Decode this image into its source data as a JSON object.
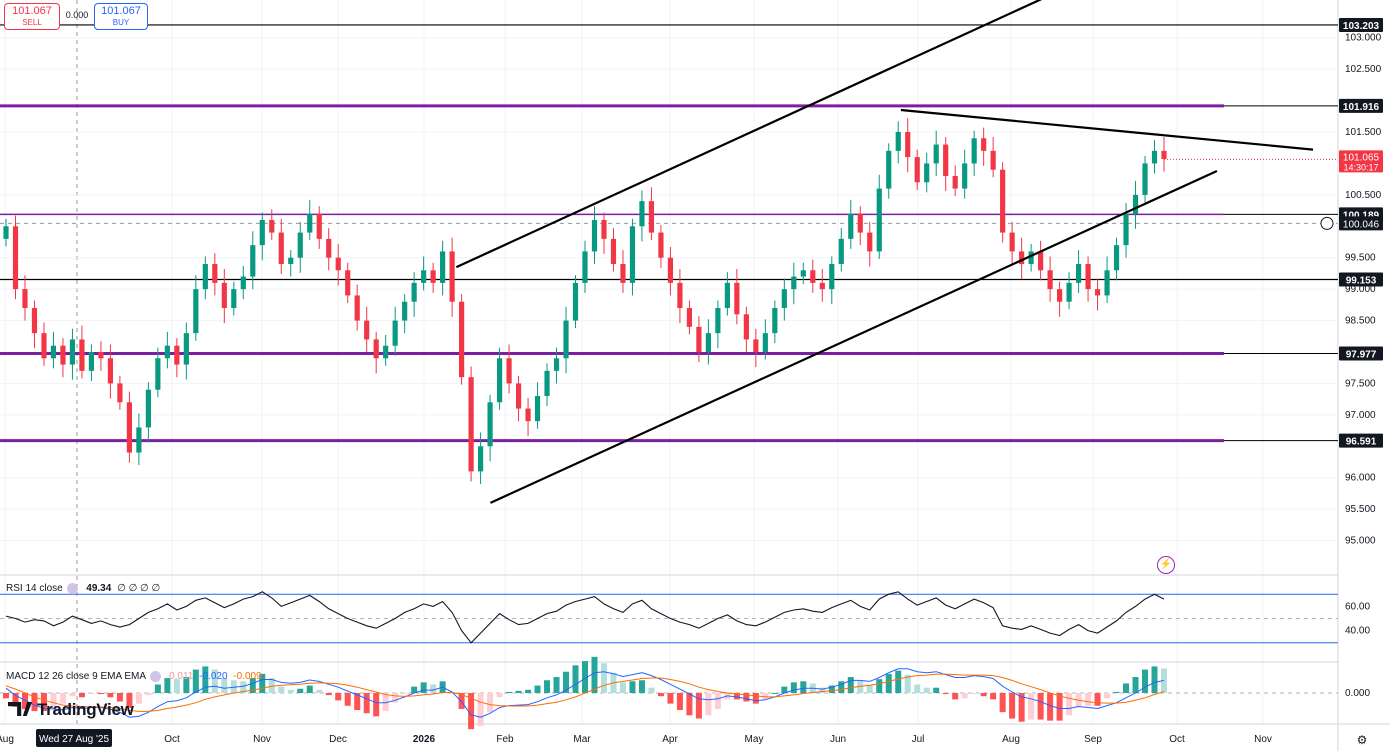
{
  "trade_panel": {
    "sell_price": "101.067",
    "sell_label": "SELL",
    "spread": "0.000",
    "buy_price": "101.067",
    "buy_label": "BUY"
  },
  "rsi_label": {
    "name": "RSI 14 close",
    "value": "49.34",
    "extra": "∅ ∅ ∅ ∅"
  },
  "macd_label": {
    "name": "MACD 12 26 close 9 EMA EMA",
    "v1": "0.011",
    "v2": "-0.020",
    "v3": "-0.009"
  },
  "brand": "TradingView",
  "colors": {
    "up": "#089981",
    "down": "#f23645",
    "purple": "#7b1fa2",
    "rsi_band": "#2962ff",
    "macd": "#2962ff",
    "signal": "#ff6d00"
  },
  "icons": {
    "logo": "tradingview-logo-icon",
    "settings": "gear-icon",
    "alert": "lightning-icon"
  },
  "chart_data": {
    "type": "candlestick",
    "price_ticks": [
      "103.000",
      "102.500",
      "101.500",
      "100.500",
      "99.500",
      "99.000",
      "98.500",
      "97.500",
      "97.000",
      "96.000",
      "95.500",
      "95.000"
    ],
    "price_range": [
      94.5,
      103.6
    ],
    "x_labels": [
      "Aug",
      "Oct",
      "Nov",
      "Dec",
      "2026",
      "Feb",
      "Mar",
      "Apr",
      "May",
      "Jun",
      "Jul",
      "Aug",
      "Sep",
      "Oct",
      "Nov"
    ],
    "crosshair_date": "Wed 27 Aug '25",
    "current_price": {
      "value": "101.065",
      "countdown": "14:30:17"
    },
    "crosshair_price": "100.046",
    "level_labels": [
      {
        "value": "103.203",
        "price": 103.203,
        "line": "black"
      },
      {
        "value": "101.916",
        "price": 101.916,
        "line": "purple"
      },
      {
        "value": "100.189",
        "price": 100.189,
        "line": "purple"
      },
      {
        "value": "99.153",
        "price": 99.153,
        "line": "black"
      },
      {
        "value": "97.977",
        "price": 97.977,
        "line": "purple"
      },
      {
        "value": "96.591",
        "price": 96.591,
        "line": "purple"
      }
    ],
    "trendlines": [
      {
        "name": "channel-upper",
        "from": [
          0.3283,
          99.35
        ],
        "to": [
          0.7577,
          103.7
        ]
      },
      {
        "name": "channel-lower",
        "from": [
          0.3528,
          95.6
        ],
        "to": [
          0.8755,
          100.88
        ]
      },
      {
        "name": "resistance-falling",
        "from": [
          0.6481,
          101.85
        ],
        "to": [
          0.9446,
          101.22
        ]
      }
    ],
    "closes": [
      100.0,
      99.0,
      98.7,
      98.3,
      97.9,
      98.1,
      97.8,
      98.2,
      97.7,
      98.0,
      97.9,
      97.5,
      97.2,
      96.4,
      96.8,
      97.4,
      97.9,
      98.1,
      97.8,
      98.3,
      99.0,
      99.4,
      99.1,
      98.7,
      99.0,
      99.2,
      99.7,
      100.1,
      99.9,
      99.4,
      99.5,
      99.9,
      100.2,
      99.8,
      99.5,
      99.3,
      98.9,
      98.5,
      98.2,
      97.9,
      98.1,
      98.5,
      98.8,
      99.1,
      99.3,
      99.1,
      99.6,
      98.8,
      97.6,
      96.1,
      96.5,
      97.2,
      97.9,
      97.5,
      97.1,
      96.9,
      97.3,
      97.7,
      97.9,
      98.5,
      99.1,
      99.6,
      100.1,
      99.8,
      99.4,
      99.1,
      100.0,
      100.4,
      99.9,
      99.5,
      99.1,
      98.7,
      98.4,
      98.0,
      98.3,
      98.7,
      99.1,
      98.6,
      98.2,
      98.0,
      98.3,
      98.7,
      99.0,
      99.2,
      99.3,
      99.1,
      99.0,
      99.4,
      99.8,
      100.2,
      99.9,
      99.6,
      100.6,
      101.2,
      101.5,
      101.1,
      100.7,
      101.0,
      101.3,
      100.8,
      100.6,
      101.0,
      101.4,
      101.2,
      100.9,
      99.9,
      99.6,
      99.4,
      99.6,
      99.3,
      99.0,
      98.8,
      99.1,
      99.4,
      99.0,
      98.9,
      99.3,
      99.7,
      100.2,
      100.5,
      101.0,
      101.2,
      101.07
    ],
    "rsi": {
      "range": [
        0,
        100
      ],
      "levels": [
        70,
        50,
        30
      ],
      "ticks": [
        "60.00",
        "40.00"
      ],
      "values": [
        52,
        50,
        47,
        49,
        48,
        44,
        47,
        52,
        49,
        46,
        48,
        45,
        43,
        45,
        50,
        55,
        58,
        62,
        57,
        60,
        65,
        67,
        63,
        59,
        62,
        66,
        68,
        72,
        67,
        60,
        63,
        66,
        69,
        64,
        58,
        54,
        50,
        47,
        44,
        42,
        46,
        50,
        55,
        58,
        62,
        60,
        64,
        55,
        40,
        30,
        38,
        46,
        54,
        49,
        45,
        46,
        50,
        54,
        56,
        61,
        64,
        66,
        68,
        62,
        58,
        55,
        62,
        65,
        58,
        54,
        50,
        47,
        45,
        42,
        46,
        50,
        53,
        48,
        45,
        44,
        47,
        51,
        55,
        57,
        58,
        56,
        55,
        59,
        62,
        65,
        60,
        57,
        66,
        70,
        72,
        66,
        61,
        64,
        67,
        61,
        58,
        62,
        66,
        63,
        59,
        44,
        42,
        41,
        44,
        41,
        38,
        36,
        41,
        45,
        40,
        38,
        43,
        48,
        55,
        60,
        66,
        70,
        66
      ]
    },
    "macd": {
      "ticks": [
        "0.000"
      ],
      "macd": [
        0.1,
        -0.05,
        -0.15,
        -0.25,
        -0.32,
        -0.33,
        -0.35,
        -0.3,
        -0.32,
        -0.3,
        -0.3,
        -0.34,
        -0.4,
        -0.5,
        -0.48,
        -0.4,
        -0.28,
        -0.18,
        -0.16,
        -0.1,
        0.02,
        0.12,
        0.14,
        0.1,
        0.12,
        0.14,
        0.2,
        0.28,
        0.28,
        0.22,
        0.2,
        0.22,
        0.27,
        0.24,
        0.18,
        0.12,
        0.04,
        -0.04,
        -0.12,
        -0.2,
        -0.2,
        -0.15,
        -0.08,
        0.0,
        0.06,
        0.06,
        0.12,
        0.02,
        -0.18,
        -0.45,
        -0.5,
        -0.42,
        -0.3,
        -0.26,
        -0.25,
        -0.24,
        -0.18,
        -0.1,
        -0.04,
        0.06,
        0.18,
        0.3,
        0.42,
        0.44,
        0.4,
        0.34,
        0.38,
        0.42,
        0.36,
        0.28,
        0.18,
        0.08,
        -0.02,
        -0.12,
        -0.14,
        -0.12,
        -0.06,
        -0.08,
        -0.12,
        -0.16,
        -0.14,
        -0.08,
        0.0,
        0.06,
        0.1,
        0.1,
        0.08,
        0.12,
        0.18,
        0.26,
        0.26,
        0.24,
        0.32,
        0.42,
        0.5,
        0.5,
        0.44,
        0.42,
        0.44,
        0.38,
        0.32,
        0.32,
        0.36,
        0.34,
        0.3,
        0.14,
        0.02,
        -0.08,
        -0.12,
        -0.18,
        -0.26,
        -0.32,
        -0.32,
        -0.28,
        -0.3,
        -0.32,
        -0.26,
        -0.2,
        -0.1,
        0.0,
        0.12,
        0.22,
        0.26
      ],
      "signal": [
        0.15,
        0.08,
        0.0,
        -0.08,
        -0.15,
        -0.2,
        -0.25,
        -0.27,
        -0.28,
        -0.29,
        -0.29,
        -0.3,
        -0.32,
        -0.36,
        -0.38,
        -0.38,
        -0.36,
        -0.32,
        -0.29,
        -0.25,
        -0.2,
        -0.13,
        -0.08,
        -0.04,
        0.0,
        0.03,
        0.06,
        0.1,
        0.14,
        0.16,
        0.17,
        0.18,
        0.2,
        0.21,
        0.2,
        0.19,
        0.16,
        0.12,
        0.07,
        0.02,
        -0.03,
        -0.06,
        -0.07,
        -0.06,
        -0.04,
        -0.02,
        0.01,
        0.01,
        -0.03,
        -0.11,
        -0.19,
        -0.24,
        -0.26,
        -0.27,
        -0.27,
        -0.27,
        -0.25,
        -0.22,
        -0.19,
        -0.14,
        -0.08,
        0.0,
        0.08,
        0.16,
        0.21,
        0.24,
        0.27,
        0.3,
        0.31,
        0.31,
        0.28,
        0.24,
        0.19,
        0.12,
        0.07,
        0.03,
        0.0,
        -0.02,
        -0.04,
        -0.06,
        -0.08,
        -0.08,
        -0.06,
        -0.04,
        -0.01,
        0.01,
        0.03,
        0.05,
        0.07,
        0.11,
        0.14,
        0.16,
        0.19,
        0.24,
        0.29,
        0.33,
        0.36,
        0.37,
        0.39,
        0.39,
        0.38,
        0.37,
        0.37,
        0.37,
        0.36,
        0.32,
        0.26,
        0.19,
        0.13,
        0.07,
        0.0,
        -0.06,
        -0.11,
        -0.15,
        -0.18,
        -0.2,
        -0.21,
        -0.21,
        -0.19,
        -0.15,
        -0.1,
        -0.03,
        0.03
      ],
      "range": [
        -0.6,
        0.6
      ]
    }
  }
}
